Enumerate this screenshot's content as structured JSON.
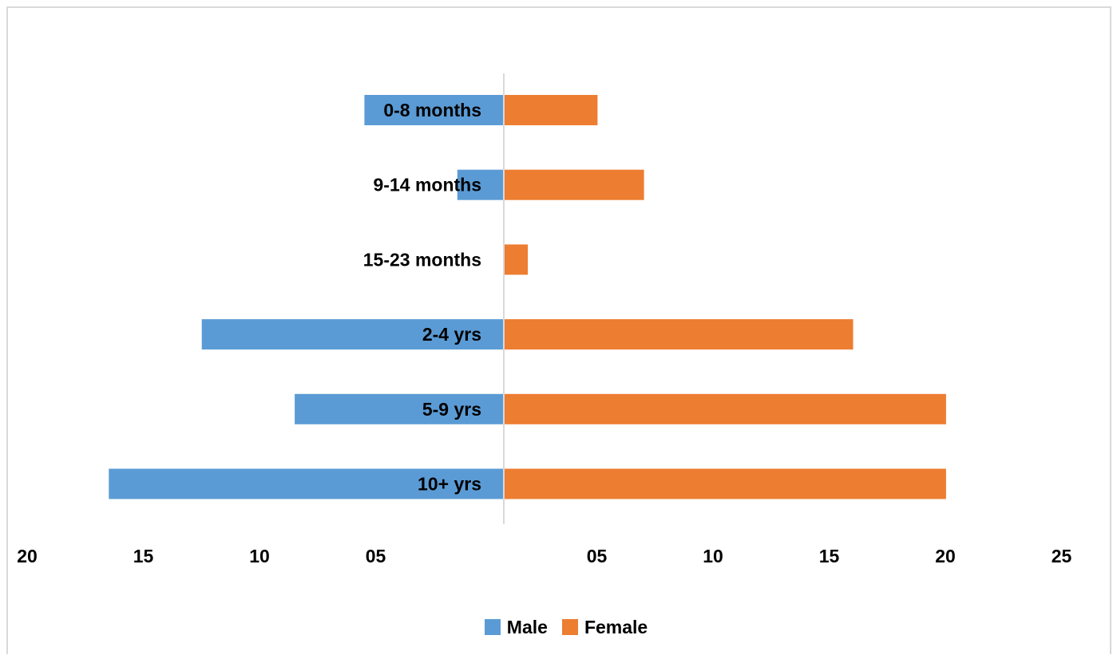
{
  "chart_data": {
    "type": "bar",
    "orientation": "horizontal",
    "layout": "population-pyramid",
    "categories": [
      "0-8 months",
      "9-14 months",
      "15-23 months",
      "2-4 yrs",
      "5-9 yrs",
      "10+  yrs"
    ],
    "series": [
      {
        "name": "Male",
        "color": "#5b9bd5",
        "side": "left",
        "values": [
          6,
          2,
          0,
          13,
          9,
          17
        ]
      },
      {
        "name": "Female",
        "color": "#ed7d31",
        "side": "right",
        "values": [
          4,
          6,
          1,
          15,
          19,
          19
        ]
      }
    ],
    "left_axis": {
      "ticks": [
        "20",
        "15",
        "10",
        "05"
      ],
      "range": [
        0,
        20
      ]
    },
    "right_axis": {
      "ticks": [
        "05",
        "10",
        "15",
        "20",
        "25"
      ],
      "range": [
        0,
        25
      ]
    },
    "grid": false,
    "legend_position": "bottom"
  }
}
